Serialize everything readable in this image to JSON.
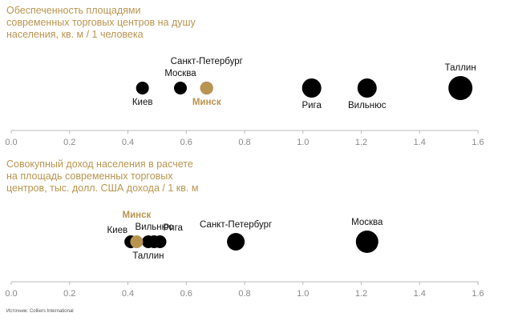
{
  "colors": {
    "accent": "#b8954f",
    "dot": "#000000",
    "axis": "#bbbbbb",
    "tick": "#888888",
    "label": "#111111"
  },
  "source": "Источник: Colliers International",
  "chart_data": [
    {
      "type": "scatter",
      "title": "Обеспеченность площадями\nсовременных торговых центров на душу\nнаселения, кв. м / 1 человека",
      "xlim": [
        0,
        1.6
      ],
      "ticks": [
        "0.0",
        "0.2",
        "0.4",
        "0.6",
        "0.8",
        "1.0",
        "1.2",
        "1.4",
        "1.6"
      ],
      "points": [
        {
          "label": "Киев",
          "x": 0.45,
          "size": "small",
          "highlight": false,
          "label_pos": "below"
        },
        {
          "label": "Москва",
          "x": 0.58,
          "size": "small",
          "highlight": false,
          "label_pos": "above"
        },
        {
          "label": "Санкт-Петербург",
          "x": 0.67,
          "size": "small",
          "highlight": false,
          "label_pos": "above-far"
        },
        {
          "label": "Минск",
          "x": 0.67,
          "size": "small",
          "highlight": true,
          "label_pos": "below"
        },
        {
          "label": "Рига",
          "x": 1.03,
          "size": "medium",
          "highlight": false,
          "label_pos": "below"
        },
        {
          "label": "Вильнюс",
          "x": 1.22,
          "size": "medium",
          "highlight": false,
          "label_pos": "below"
        },
        {
          "label": "Таллин",
          "x": 1.54,
          "size": "large",
          "highlight": false,
          "label_pos": "above"
        }
      ]
    },
    {
      "type": "scatter",
      "title": "Совокупный доход населения в расчете\nна площадь современных торговых\nцентров, тыс. долл. США дохода / 1 кв. м",
      "xlim": [
        0,
        1.6
      ],
      "ticks": [
        "0.0",
        "0.2",
        "0.4",
        "0.6",
        "0.8",
        "1.0",
        "1.2",
        "1.4",
        "1.6"
      ],
      "points": [
        {
          "label": "Киев",
          "x": 0.41,
          "size": "small",
          "highlight": false,
          "label_pos": "above-left"
        },
        {
          "label": "Минск",
          "x": 0.43,
          "size": "small",
          "highlight": true,
          "label_pos": "above-far"
        },
        {
          "label": "Таллин",
          "x": 0.47,
          "size": "small",
          "highlight": false,
          "label_pos": "below"
        },
        {
          "label": "Вильнюс",
          "x": 0.49,
          "size": "small",
          "highlight": false,
          "label_pos": "above"
        },
        {
          "label": "Рига",
          "x": 0.51,
          "size": "small",
          "highlight": false,
          "label_pos": "above-right"
        },
        {
          "label": "Санкт-Петербург",
          "x": 0.77,
          "size": "medium",
          "highlight": false,
          "label_pos": "above"
        },
        {
          "label": "Москва",
          "x": 1.22,
          "size": "large",
          "highlight": false,
          "label_pos": "above"
        }
      ]
    }
  ]
}
